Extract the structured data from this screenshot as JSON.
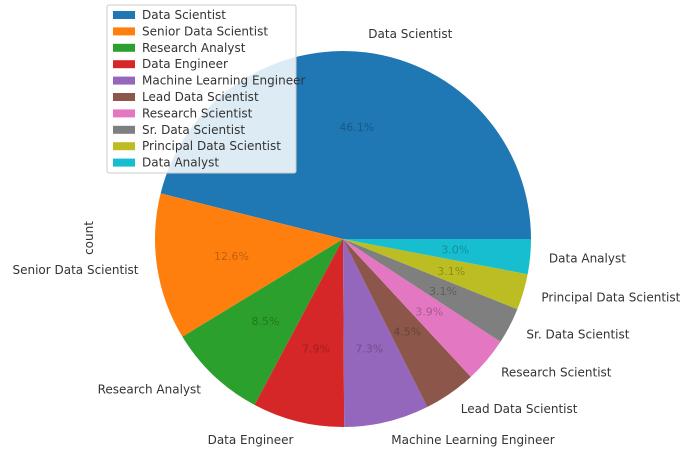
{
  "chart_data": {
    "type": "pie",
    "ylabel": "count",
    "legend_position": "top-left",
    "categories": [
      "Data Scientist",
      "Senior Data Scientist",
      "Research Analyst",
      "Data Engineer",
      "Machine Learning Engineer",
      "Lead Data Scientist",
      "Research Scientist",
      "Sr. Data Scientist",
      "Principal Data Scientist",
      "Data Analyst"
    ],
    "percent_labels": [
      "46.1%",
      "12.6%",
      "8.5%",
      "7.9%",
      "7.3%",
      "4.5%",
      "3.9%",
      "3.1%",
      "3.1%",
      "3.0%"
    ],
    "values": [
      46.1,
      12.6,
      8.5,
      7.9,
      7.3,
      4.5,
      3.9,
      3.1,
      3.1,
      3.0
    ],
    "colors": [
      "#1f77b4",
      "#ff7f0e",
      "#2ca02c",
      "#d62728",
      "#9467bd",
      "#8c564b",
      "#e377c2",
      "#7f7f7f",
      "#bcbd22",
      "#17becf"
    ],
    "start_angle_deg": 0,
    "direction": "counterclockwise"
  }
}
